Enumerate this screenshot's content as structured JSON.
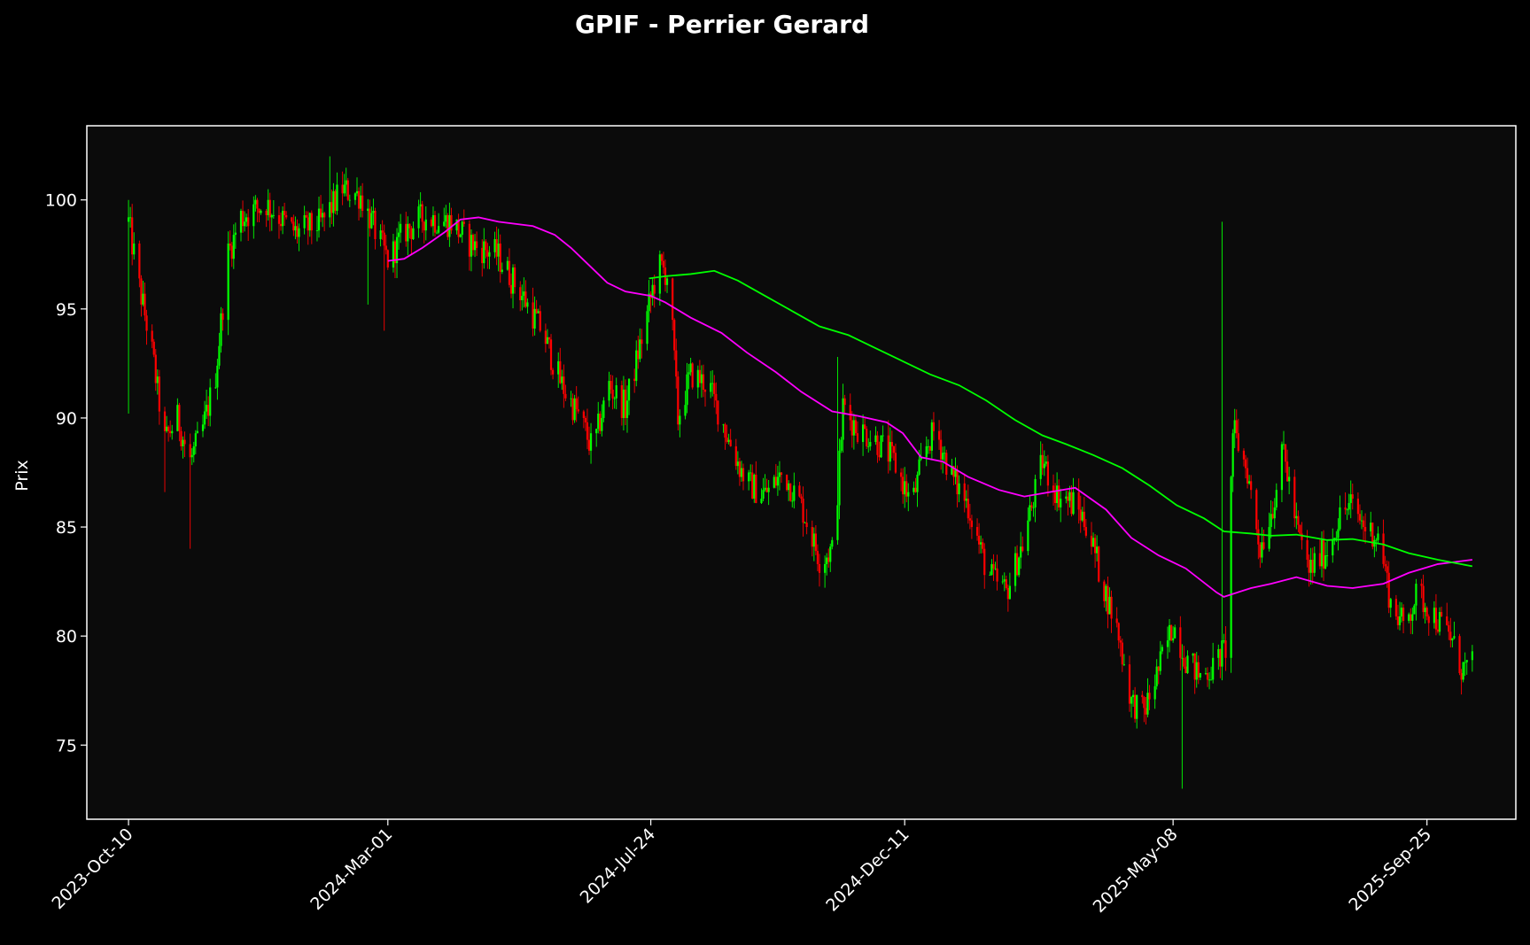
{
  "chart_data": {
    "type": "candlestick",
    "title": "GPIF - Perrier Gerard",
    "ylabel": "Prix",
    "xlabel": "",
    "x_start": "2023-10-10",
    "x_end": "2025-10-20",
    "xlim": [
      "2023-09-17",
      "2025-11-13"
    ],
    "ylim": [
      71.6,
      103.4
    ],
    "yticks": [
      75,
      80,
      85,
      90,
      95,
      100
    ],
    "xticks": [
      {
        "date": "2023-10-10",
        "label": "2023-Oct-10"
      },
      {
        "date": "2024-03-01",
        "label": "2024-Mar-01"
      },
      {
        "date": "2024-07-24",
        "label": "2024-Jul-24"
      },
      {
        "date": "2024-12-11",
        "label": "2024-Dec-11"
      },
      {
        "date": "2025-05-08",
        "label": "2025-May-08"
      },
      {
        "date": "2025-09-25",
        "label": "2025-Sep-25"
      }
    ],
    "grid": false,
    "colors": {
      "up": "#00ff00",
      "down": "#ff0000",
      "ma_short": "#ff00ff",
      "ma_long": "#00ff00",
      "background": "#000000",
      "plot_background": "#0b0b0b",
      "frame": "#ffffff",
      "text": "#ffffff"
    },
    "close_anchors": [
      [
        "2023-10-10",
        99.0
      ],
      [
        "2023-10-16",
        96.0
      ],
      [
        "2023-10-23",
        93.0
      ],
      [
        "2023-10-30",
        89.0
      ],
      [
        "2023-11-06",
        90.0
      ],
      [
        "2023-11-13",
        88.0
      ],
      [
        "2023-11-20",
        89.5
      ],
      [
        "2023-11-27",
        92.0
      ],
      [
        "2023-12-04",
        97.5
      ],
      [
        "2023-12-11",
        99.2
      ],
      [
        "2023-12-25",
        99.8
      ],
      [
        "2024-01-10",
        98.5
      ],
      [
        "2024-01-25",
        99.0
      ],
      [
        "2024-02-05",
        100.5
      ],
      [
        "2024-02-15",
        100.2
      ],
      [
        "2024-02-22",
        98.8
      ],
      [
        "2024-03-01",
        97.2
      ],
      [
        "2024-03-10",
        98.5
      ],
      [
        "2024-03-20",
        99.2
      ],
      [
        "2024-04-05",
        99.0
      ],
      [
        "2024-04-15",
        98.0
      ],
      [
        "2024-04-30",
        97.5
      ],
      [
        "2024-05-15",
        95.5
      ],
      [
        "2024-05-25",
        94.0
      ],
      [
        "2024-06-05",
        91.5
      ],
      [
        "2024-06-15",
        90.0
      ],
      [
        "2024-06-22",
        88.5
      ],
      [
        "2024-07-01",
        91.5
      ],
      [
        "2024-07-10",
        90.5
      ],
      [
        "2024-07-20",
        94.0
      ],
      [
        "2024-07-28",
        97.0
      ],
      [
        "2024-08-03",
        96.5
      ],
      [
        "2024-08-08",
        90.0
      ],
      [
        "2024-08-15",
        92.0
      ],
      [
        "2024-08-25",
        91.5
      ],
      [
        "2024-09-05",
        89.0
      ],
      [
        "2024-09-15",
        87.0
      ],
      [
        "2024-09-25",
        86.5
      ],
      [
        "2024-10-05",
        87.5
      ],
      [
        "2024-10-15",
        86.0
      ],
      [
        "2024-10-25",
        83.5
      ],
      [
        "2024-11-02",
        84.0
      ],
      [
        "2024-11-07",
        90.5
      ],
      [
        "2024-11-15",
        89.5
      ],
      [
        "2024-11-25",
        89.0
      ],
      [
        "2024-12-05",
        88.0
      ],
      [
        "2024-12-15",
        86.0
      ],
      [
        "2024-12-22",
        88.5
      ],
      [
        "2024-12-28",
        89.5
      ],
      [
        "2025-01-05",
        87.5
      ],
      [
        "2025-01-15",
        86.0
      ],
      [
        "2025-01-25",
        83.0
      ],
      [
        "2025-02-05",
        82.0
      ],
      [
        "2025-02-15",
        84.5
      ],
      [
        "2025-02-25",
        88.0
      ],
      [
        "2025-03-05",
        86.5
      ],
      [
        "2025-03-15",
        86.0
      ],
      [
        "2025-03-22",
        85.0
      ],
      [
        "2025-03-30",
        82.5
      ],
      [
        "2025-04-08",
        80.0
      ],
      [
        "2025-04-15",
        77.0
      ],
      [
        "2025-04-22",
        76.5
      ],
      [
        "2025-04-30",
        78.5
      ],
      [
        "2025-05-08",
        80.5
      ],
      [
        "2025-05-15",
        79.0
      ],
      [
        "2025-05-22",
        78.2
      ],
      [
        "2025-05-30",
        78.5
      ],
      [
        "2025-06-06",
        79.5
      ],
      [
        "2025-06-10",
        89.5
      ],
      [
        "2025-06-18",
        87.5
      ],
      [
        "2025-06-25",
        84.0
      ],
      [
        "2025-07-02",
        86.0
      ],
      [
        "2025-07-08",
        88.5
      ],
      [
        "2025-07-15",
        85.0
      ],
      [
        "2025-07-22",
        83.0
      ],
      [
        "2025-08-01",
        84.0
      ],
      [
        "2025-08-08",
        85.5
      ],
      [
        "2025-08-14",
        86.0
      ],
      [
        "2025-08-22",
        85.0
      ],
      [
        "2025-08-30",
        84.5
      ],
      [
        "2025-09-05",
        81.5
      ],
      [
        "2025-09-12",
        80.5
      ],
      [
        "2025-09-20",
        82.0
      ],
      [
        "2025-09-28",
        81.0
      ],
      [
        "2025-10-08",
        80.0
      ],
      [
        "2025-10-14",
        78.5
      ],
      [
        "2025-10-20",
        78.6
      ]
    ],
    "spikes": [
      {
        "date": "2023-10-10",
        "high": 100.0,
        "low": 90.2
      },
      {
        "date": "2023-11-02",
        "low": 86.6
      },
      {
        "date": "2023-11-14",
        "low": 84.0
      },
      {
        "date": "2024-02-01",
        "high": 102.0
      },
      {
        "date": "2024-02-22",
        "low": 95.2
      },
      {
        "date": "2024-03-02",
        "low": 94.0
      },
      {
        "date": "2024-11-06",
        "high": 92.8
      },
      {
        "date": "2025-05-16",
        "low": 73.0
      },
      {
        "date": "2025-06-07",
        "high": 99.0,
        "low": 86.0
      }
    ],
    "series": [
      {
        "name": "",
        "type": "line",
        "color": "#ff00ff",
        "points": [
          [
            "2024-03-01",
            97.2
          ],
          [
            "2024-03-10",
            97.3
          ],
          [
            "2024-03-20",
            97.8
          ],
          [
            "2024-04-01",
            98.5
          ],
          [
            "2024-04-10",
            99.1
          ],
          [
            "2024-04-20",
            99.2
          ],
          [
            "2024-05-01",
            99.0
          ],
          [
            "2024-05-20",
            98.8
          ],
          [
            "2024-06-01",
            98.4
          ],
          [
            "2024-06-10",
            97.8
          ],
          [
            "2024-06-20",
            97.0
          ],
          [
            "2024-06-30",
            96.2
          ],
          [
            "2024-07-10",
            95.8
          ],
          [
            "2024-07-24",
            95.6
          ],
          [
            "2024-08-01",
            95.3
          ],
          [
            "2024-08-15",
            94.6
          ],
          [
            "2024-09-01",
            93.9
          ],
          [
            "2024-09-15",
            93.0
          ],
          [
            "2024-10-01",
            92.1
          ],
          [
            "2024-10-15",
            91.2
          ],
          [
            "2024-11-01",
            90.3
          ],
          [
            "2024-11-15",
            90.1
          ],
          [
            "2024-12-01",
            89.8
          ],
          [
            "2024-12-10",
            89.3
          ],
          [
            "2024-12-20",
            88.2
          ],
          [
            "2025-01-01",
            88.0
          ],
          [
            "2025-01-15",
            87.3
          ],
          [
            "2025-02-01",
            86.7
          ],
          [
            "2025-02-15",
            86.4
          ],
          [
            "2025-03-01",
            86.6
          ],
          [
            "2025-03-15",
            86.8
          ],
          [
            "2025-04-01",
            85.8
          ],
          [
            "2025-04-15",
            84.5
          ],
          [
            "2025-04-30",
            83.7
          ],
          [
            "2025-05-15",
            83.1
          ],
          [
            "2025-06-01",
            82.0
          ],
          [
            "2025-06-05",
            81.8
          ],
          [
            "2025-06-20",
            82.2
          ],
          [
            "2025-07-01",
            82.4
          ],
          [
            "2025-07-15",
            82.7
          ],
          [
            "2025-08-01",
            82.3
          ],
          [
            "2025-08-15",
            82.2
          ],
          [
            "2025-09-01",
            82.4
          ],
          [
            "2025-09-15",
            82.9
          ],
          [
            "2025-10-01",
            83.3
          ],
          [
            "2025-10-20",
            83.5
          ]
        ]
      },
      {
        "name": "",
        "type": "line",
        "color": "#00ff00",
        "points": [
          [
            "2024-07-23",
            96.4
          ],
          [
            "2024-08-01",
            96.5
          ],
          [
            "2024-08-15",
            96.6
          ],
          [
            "2024-08-28",
            96.75
          ],
          [
            "2024-09-10",
            96.3
          ],
          [
            "2024-09-25",
            95.6
          ],
          [
            "2024-10-10",
            94.9
          ],
          [
            "2024-10-25",
            94.2
          ],
          [
            "2024-11-10",
            93.8
          ],
          [
            "2024-11-25",
            93.2
          ],
          [
            "2024-12-10",
            92.6
          ],
          [
            "2024-12-25",
            92.0
          ],
          [
            "2025-01-10",
            91.5
          ],
          [
            "2025-01-25",
            90.8
          ],
          [
            "2025-02-10",
            89.9
          ],
          [
            "2025-02-25",
            89.2
          ],
          [
            "2025-03-10",
            88.8
          ],
          [
            "2025-03-25",
            88.3
          ],
          [
            "2025-04-10",
            87.7
          ],
          [
            "2025-04-25",
            86.9
          ],
          [
            "2025-05-10",
            86.0
          ],
          [
            "2025-05-25",
            85.4
          ],
          [
            "2025-06-05",
            84.8
          ],
          [
            "2025-06-20",
            84.7
          ],
          [
            "2025-07-01",
            84.6
          ],
          [
            "2025-07-15",
            84.65
          ],
          [
            "2025-08-01",
            84.4
          ],
          [
            "2025-08-15",
            84.45
          ],
          [
            "2025-09-01",
            84.2
          ],
          [
            "2025-09-15",
            83.8
          ],
          [
            "2025-10-01",
            83.5
          ],
          [
            "2025-10-20",
            83.2
          ]
        ]
      }
    ]
  }
}
